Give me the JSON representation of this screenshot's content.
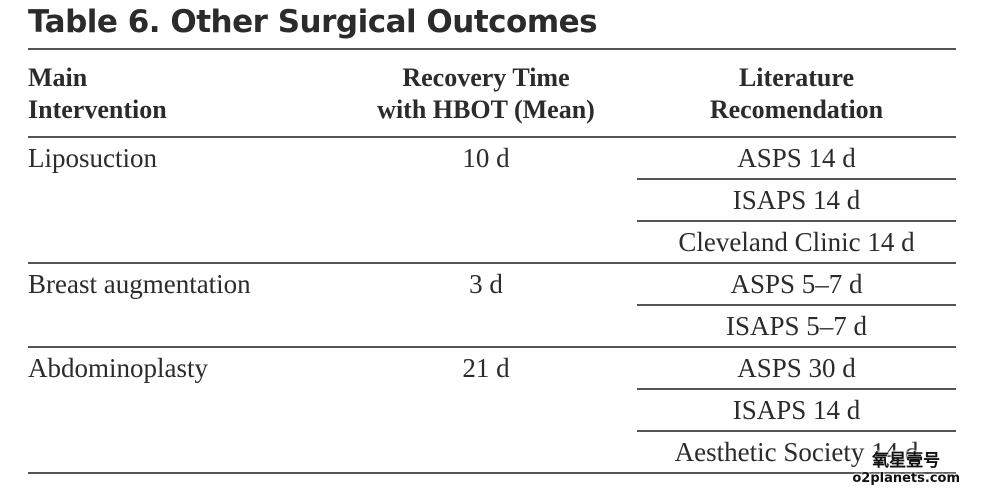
{
  "title": "Table 6. Other Surgical Outcomes",
  "headers": {
    "main": [
      "Main",
      "Intervention"
    ],
    "recovery": [
      "Recovery Time",
      "with HBOT (Mean)"
    ],
    "literature": [
      "Literature",
      "Recomendation"
    ]
  },
  "groups": [
    {
      "intervention": "Liposuction",
      "recovery": "10 d",
      "literature": [
        "ASPS 14 d",
        "ISAPS 14 d",
        "Cleveland Clinic 14 d"
      ]
    },
    {
      "intervention": "Breast augmentation",
      "recovery": "3 d",
      "literature": [
        "ASPS 5–7 d",
        "ISAPS 5–7 d"
      ]
    },
    {
      "intervention": "Abdominoplasty",
      "recovery": "21 d",
      "literature": [
        "ASPS 30 d",
        "ISAPS 14 d",
        "Aesthetic Society 14 d"
      ]
    }
  ],
  "watermark": {
    "line1": "氧星壹号",
    "line2": "o2planets.com"
  }
}
